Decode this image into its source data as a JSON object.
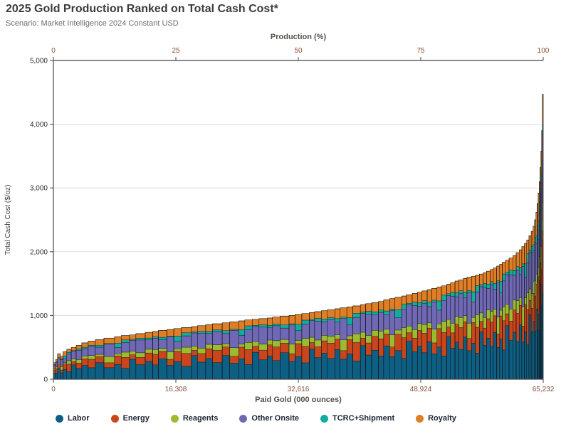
{
  "header": {
    "title": "2025 Gold Production Ranked on Total Cash Cost*",
    "subtitle": "Scenario: Market Intelligence 2024 Constant USD"
  },
  "colors": {
    "background": "#ffffff",
    "grid": "#dcdcdc",
    "axis": "#454545",
    "bar_outline": "#0d0d0d",
    "segment_stroke": "#151513",
    "x_tick_text": "#8a513b",
    "y_tick_text": "#2e2c29"
  },
  "chart_data": {
    "type": "bar",
    "variant": "variable-width-stacked-cost-curve",
    "title": "2025 Gold Production Ranked on Total Cash Cost*",
    "subtitle": "Scenario: Market Intelligence 2024 Constant USD",
    "grid": "horizontal-major",
    "legend_position": "bottom",
    "production_total_koz": 65232,
    "x_bottom": {
      "label": "Paid Gold (000 ounces)",
      "ticks": [
        {
          "pos": 0.0,
          "label": "0"
        },
        {
          "pos": 0.25,
          "label": "16,308"
        },
        {
          "pos": 0.5,
          "label": "32,616"
        },
        {
          "pos": 0.75,
          "label": "48,924"
        },
        {
          "pos": 1.0,
          "label": "65,232"
        }
      ]
    },
    "x_top": {
      "label": "Production (%)",
      "ticks": [
        {
          "pos": 0.0,
          "label": "0"
        },
        {
          "pos": 0.25,
          "label": "25"
        },
        {
          "pos": 0.5,
          "label": "50"
        },
        {
          "pos": 0.75,
          "label": "75"
        },
        {
          "pos": 1.0,
          "label": "100"
        }
      ]
    },
    "y": {
      "label": "Total Cash Cost ($/oz)",
      "min": 0,
      "max": 5000,
      "tick_values": [
        0,
        1000,
        2000,
        3000,
        4000,
        5000
      ],
      "tick_labels": [
        "0",
        "1,000",
        "2,000",
        "3,000",
        "4,000",
        "5,000"
      ]
    },
    "legend": [
      {
        "label": "Labor",
        "color": "#0e5f84"
      },
      {
        "label": "Energy",
        "color": "#c9451c"
      },
      {
        "label": "Reagents",
        "color": "#9cbb31"
      },
      {
        "label": "Other Onsite",
        "color": "#6f68b5"
      },
      {
        "label": "TCRC+Shipment",
        "color": "#0fac9f"
      },
      {
        "label": "Royalty",
        "color": "#e07e26"
      }
    ],
    "components": [
      "Labor",
      "Energy",
      "Reagents",
      "Other Onsite",
      "TCRC+Shipment",
      "Royalty"
    ],
    "profiles_note": "cost-split fractions per component, in components order",
    "profiles": [
      [
        0.38,
        0.18,
        0.08,
        0.2,
        0.04,
        0.12
      ],
      [
        0.3,
        0.22,
        0.1,
        0.24,
        0.03,
        0.11
      ],
      [
        0.42,
        0.15,
        0.06,
        0.18,
        0.05,
        0.14
      ],
      [
        0.28,
        0.12,
        0.15,
        0.3,
        0.02,
        0.13
      ],
      [
        0.35,
        0.2,
        0.05,
        0.15,
        0.1,
        0.15
      ],
      [
        0.25,
        0.25,
        0.12,
        0.22,
        0.06,
        0.1
      ],
      [
        0.45,
        0.1,
        0.08,
        0.25,
        0.02,
        0.1
      ],
      [
        0.32,
        0.16,
        0.1,
        0.28,
        0.04,
        0.1
      ]
    ],
    "mines_format": "[production_koz, total_cash_cost_usd_per_oz, profile_index]",
    "mines": [
      [
        302,
        260,
        0
      ],
      [
        250,
        310,
        1
      ],
      [
        380,
        400,
        2
      ],
      [
        350,
        360,
        3
      ],
      [
        500,
        430,
        4
      ],
      [
        600,
        470,
        5
      ],
      [
        650,
        500,
        6
      ],
      [
        750,
        530,
        7
      ],
      [
        850,
        570,
        0
      ],
      [
        950,
        600,
        1
      ],
      [
        1150,
        620,
        2
      ],
      [
        1400,
        645,
        3
      ],
      [
        900,
        665,
        4
      ],
      [
        1100,
        685,
        5
      ],
      [
        850,
        695,
        6
      ],
      [
        1250,
        715,
        7
      ],
      [
        1000,
        735,
        0
      ],
      [
        750,
        750,
        1
      ],
      [
        1150,
        765,
        2
      ],
      [
        900,
        780,
        3
      ],
      [
        1000,
        795,
        4
      ],
      [
        1350,
        810,
        5
      ],
      [
        800,
        825,
        6
      ],
      [
        1100,
        840,
        7
      ],
      [
        900,
        855,
        0
      ],
      [
        1300,
        870,
        1
      ],
      [
        1000,
        885,
        2
      ],
      [
        1200,
        900,
        3
      ],
      [
        800,
        915,
        4
      ],
      [
        1000,
        930,
        5
      ],
      [
        900,
        940,
        6
      ],
      [
        1100,
        950,
        7
      ],
      [
        700,
        960,
        0
      ],
      [
        1000,
        975,
        1
      ],
      [
        1200,
        990,
        2
      ],
      [
        800,
        1000,
        3
      ],
      [
        900,
        1015,
        4
      ],
      [
        1000,
        1030,
        5
      ],
      [
        700,
        1045,
        6
      ],
      [
        900,
        1060,
        7
      ],
      [
        800,
        1075,
        0
      ],
      [
        1000,
        1090,
        1
      ],
      [
        700,
        1105,
        2
      ],
      [
        900,
        1120,
        3
      ],
      [
        800,
        1135,
        4
      ],
      [
        1000,
        1150,
        5
      ],
      [
        700,
        1170,
        6
      ],
      [
        800,
        1185,
        7
      ],
      [
        900,
        1200,
        0
      ],
      [
        700,
        1220,
        1
      ],
      [
        800,
        1245,
        2
      ],
      [
        700,
        1265,
        3
      ],
      [
        900,
        1285,
        4
      ],
      [
        600,
        1305,
        5
      ],
      [
        800,
        1325,
        6
      ],
      [
        700,
        1345,
        7
      ],
      [
        600,
        1365,
        0
      ],
      [
        700,
        1385,
        1
      ],
      [
        600,
        1405,
        2
      ],
      [
        700,
        1425,
        3
      ],
      [
        600,
        1445,
        4
      ],
      [
        700,
        1465,
        5
      ],
      [
        500,
        1490,
        6
      ],
      [
        600,
        1515,
        7
      ],
      [
        500,
        1540,
        0
      ],
      [
        600,
        1560,
        1
      ],
      [
        500,
        1580,
        2
      ],
      [
        600,
        1600,
        3
      ],
      [
        500,
        1615,
        4
      ],
      [
        550,
        1630,
        5
      ],
      [
        500,
        1650,
        6
      ],
      [
        450,
        1670,
        7
      ],
      [
        500,
        1695,
        0
      ],
      [
        400,
        1720,
        1
      ],
      [
        450,
        1745,
        2
      ],
      [
        400,
        1775,
        3
      ],
      [
        350,
        1805,
        4
      ],
      [
        400,
        1835,
        5
      ],
      [
        500,
        1865,
        6
      ],
      [
        500,
        1900,
        7
      ],
      [
        450,
        1940,
        0
      ],
      [
        400,
        1985,
        1
      ],
      [
        350,
        2030,
        2
      ],
      [
        350,
        2080,
        3
      ],
      [
        300,
        2130,
        4
      ],
      [
        300,
        2185,
        5
      ],
      [
        300,
        2250,
        6
      ],
      [
        250,
        2320,
        7
      ],
      [
        200,
        2400,
        0
      ],
      [
        180,
        2500,
        1
      ],
      [
        160,
        2620,
        2
      ],
      [
        140,
        2760,
        3
      ],
      [
        130,
        2920,
        4
      ],
      [
        120,
        3100,
        5
      ],
      [
        110,
        3320,
        6
      ],
      [
        100,
        3580,
        7
      ],
      [
        90,
        3900,
        0
      ],
      [
        120,
        4470,
        1
      ]
    ]
  }
}
